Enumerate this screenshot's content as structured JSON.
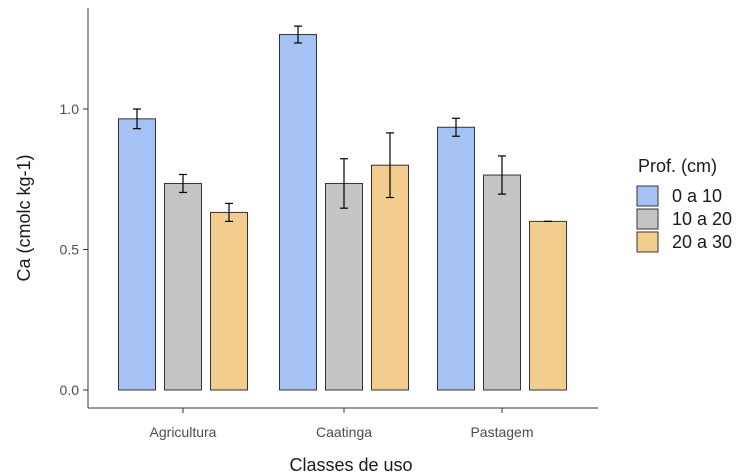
{
  "chart_data": {
    "type": "bar",
    "title": "",
    "xlabel": "Classes de uso",
    "ylabel": "Ca (cmolc kg-1)",
    "categories": [
      "Agricultura",
      "Caatinga",
      "Pastagem"
    ],
    "ylim": [
      0,
      1.33
    ],
    "yticks": [
      0.0,
      0.5,
      1.0
    ],
    "ytick_labels": [
      "0.0",
      "0.5",
      "1.0"
    ],
    "grid": false,
    "legend": {
      "title": "Prof. (cm)",
      "placement": "right"
    },
    "series": [
      {
        "name": "0 a 10",
        "color": "#a4c2f4",
        "values": [
          0.965,
          1.265,
          0.935
        ],
        "err": [
          0.035,
          0.03,
          0.032
        ]
      },
      {
        "name": "10 a 20",
        "color": "#c4c4c4",
        "values": [
          0.735,
          0.735,
          0.765
        ],
        "err": [
          0.032,
          0.088,
          0.068
        ]
      },
      {
        "name": "20 a 30",
        "color": "#f2cd8e",
        "values": [
          0.632,
          0.8,
          0.6
        ],
        "err": [
          0.032,
          0.115,
          0.0
        ]
      }
    ]
  }
}
